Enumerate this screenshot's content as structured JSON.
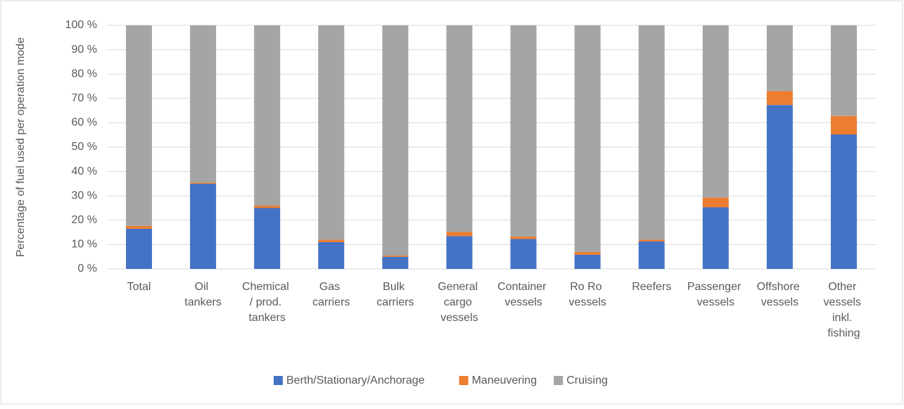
{
  "chart_data": {
    "type": "stacked_bar",
    "y_label": "Percentage of fuel used per operation mode",
    "categories": [
      "Total",
      "Oil tankers",
      "Chemical / prod. tankers",
      "Gas carriers",
      "Bulk carriers",
      "General cargo vessels",
      "Container vessels",
      "Ro Ro vessels",
      "Reefers",
      "Passenger vessels",
      "Offshore vessels",
      "Other vessels inkl. fishing"
    ],
    "series": [
      {
        "name": "Berth/Stationary/Anchorage",
        "color": "#4472c4",
        "values": [
          16.5,
          35,
          25,
          11,
          5,
          13.5,
          12.3,
          5.8,
          11.3,
          25.3,
          67.3,
          55.2
        ]
      },
      {
        "name": "Maneuvering",
        "color": "#ed7d31",
        "values": [
          1.2,
          0.5,
          1,
          1,
          0.5,
          1.7,
          1,
          1.2,
          0.7,
          4,
          5.7,
          7.6
        ]
      },
      {
        "name": "Cruising",
        "color": "#a5a5a5",
        "values": [
          82.3,
          64.5,
          74,
          88,
          94.5,
          84.8,
          86.7,
          93,
          88,
          70.7,
          27,
          37.2
        ]
      }
    ],
    "ylim": [
      0,
      100
    ],
    "yticks": [
      {
        "value": 0,
        "label": "0 %"
      },
      {
        "value": 10,
        "label": "10 %"
      },
      {
        "value": 20,
        "label": "20 %"
      },
      {
        "value": 30,
        "label": "30 %"
      },
      {
        "value": 40,
        "label": "40 %"
      },
      {
        "value": 50,
        "label": "50 %"
      },
      {
        "value": 60,
        "label": "60 %"
      },
      {
        "value": 70,
        "label": "70 %"
      },
      {
        "value": 80,
        "label": "80 %"
      },
      {
        "value": 90,
        "label": "90 %"
      },
      {
        "value": 100,
        "label": "100 %"
      }
    ],
    "grid": true,
    "legend": "bottom"
  }
}
